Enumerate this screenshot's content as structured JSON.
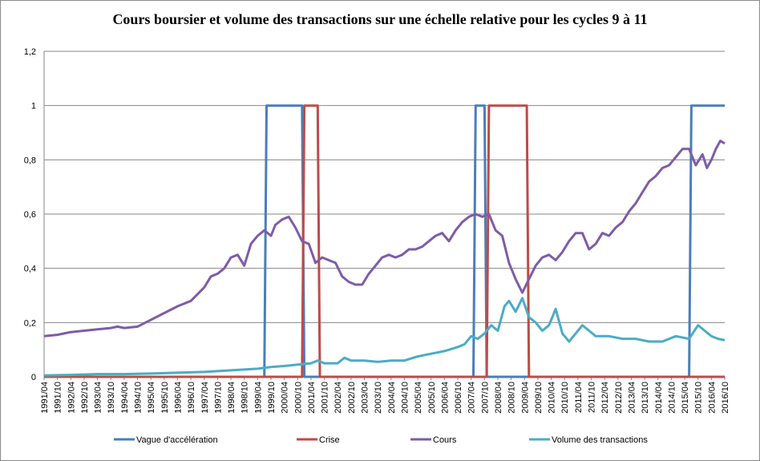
{
  "chart_data": {
    "type": "line",
    "title": "Cours boursier et volume des transactions sur une échelle relative pour les cycles 9 à 11",
    "xlabel": "",
    "ylabel": "",
    "ylim": [
      0,
      1.2
    ],
    "yticks": [
      "0",
      "0,2",
      "0,4",
      "0,6",
      "0,8",
      "1",
      "1,2"
    ],
    "grid": true,
    "legend_position": "bottom",
    "x_start": "1991/04",
    "x_end": "2016/10",
    "x_step_months": 6,
    "series": [
      {
        "name": "Vague d'accélération",
        "color": "#4a7ebb",
        "style": "step",
        "points": [
          [
            "1991/04",
            0
          ],
          [
            "1999/07",
            0
          ],
          [
            "1999/08",
            1
          ],
          [
            "2000/12",
            1
          ],
          [
            "2001/01",
            0
          ],
          [
            "2007/05",
            0
          ],
          [
            "2007/06",
            1
          ],
          [
            "2007/10",
            1
          ],
          [
            "2007/11",
            0
          ],
          [
            "2015/06",
            0
          ],
          [
            "2015/07",
            1
          ],
          [
            "2016/10",
            1
          ]
        ]
      },
      {
        "name": "Crise",
        "color": "#be4b48",
        "style": "step",
        "points": [
          [
            "1991/04",
            0
          ],
          [
            "2000/12",
            0
          ],
          [
            "2001/01",
            1
          ],
          [
            "2001/07",
            1
          ],
          [
            "2001/08",
            0
          ],
          [
            "2007/11",
            0
          ],
          [
            "2007/12",
            1
          ],
          [
            "2009/05",
            1
          ],
          [
            "2009/06",
            0
          ],
          [
            "2016/10",
            0
          ]
        ]
      },
      {
        "name": "Cours",
        "color": "#7e5ca6",
        "style": "line",
        "points": [
          [
            "1991/04",
            0.15
          ],
          [
            "1991/10",
            0.155
          ],
          [
            "1992/01",
            0.16
          ],
          [
            "1992/04",
            0.165
          ],
          [
            "1992/10",
            0.17
          ],
          [
            "1993/04",
            0.175
          ],
          [
            "1993/10",
            0.18
          ],
          [
            "1994/01",
            0.185
          ],
          [
            "1994/04",
            0.18
          ],
          [
            "1994/10",
            0.185
          ],
          [
            "1995/04",
            0.21
          ],
          [
            "1995/10",
            0.235
          ],
          [
            "1996/04",
            0.26
          ],
          [
            "1996/10",
            0.28
          ],
          [
            "1997/04",
            0.33
          ],
          [
            "1997/07",
            0.37
          ],
          [
            "1997/10",
            0.38
          ],
          [
            "1998/01",
            0.4
          ],
          [
            "1998/04",
            0.44
          ],
          [
            "1998/07",
            0.45
          ],
          [
            "1998/10",
            0.41
          ],
          [
            "1999/01",
            0.49
          ],
          [
            "1999/04",
            0.52
          ],
          [
            "1999/07",
            0.54
          ],
          [
            "1999/10",
            0.52
          ],
          [
            "1999/12",
            0.56
          ],
          [
            "2000/03",
            0.58
          ],
          [
            "2000/06",
            0.59
          ],
          [
            "2000/09",
            0.55
          ],
          [
            "2000/12",
            0.5
          ],
          [
            "2001/03",
            0.49
          ],
          [
            "2001/06",
            0.42
          ],
          [
            "2001/09",
            0.44
          ],
          [
            "2001/12",
            0.43
          ],
          [
            "2002/03",
            0.42
          ],
          [
            "2002/06",
            0.37
          ],
          [
            "2002/09",
            0.35
          ],
          [
            "2002/12",
            0.34
          ],
          [
            "2003/03",
            0.34
          ],
          [
            "2003/06",
            0.38
          ],
          [
            "2003/09",
            0.41
          ],
          [
            "2003/12",
            0.44
          ],
          [
            "2004/03",
            0.45
          ],
          [
            "2004/06",
            0.44
          ],
          [
            "2004/09",
            0.45
          ],
          [
            "2004/12",
            0.47
          ],
          [
            "2005/03",
            0.47
          ],
          [
            "2005/06",
            0.48
          ],
          [
            "2005/09",
            0.5
          ],
          [
            "2005/12",
            0.52
          ],
          [
            "2006/03",
            0.53
          ],
          [
            "2006/06",
            0.5
          ],
          [
            "2006/09",
            0.54
          ],
          [
            "2006/12",
            0.57
          ],
          [
            "2007/03",
            0.59
          ],
          [
            "2007/06",
            0.6
          ],
          [
            "2007/09",
            0.59
          ],
          [
            "2007/12",
            0.6
          ],
          [
            "2008/03",
            0.54
          ],
          [
            "2008/06",
            0.52
          ],
          [
            "2008/09",
            0.42
          ],
          [
            "2008/12",
            0.36
          ],
          [
            "2009/03",
            0.31
          ],
          [
            "2009/06",
            0.36
          ],
          [
            "2009/09",
            0.41
          ],
          [
            "2009/12",
            0.44
          ],
          [
            "2010/03",
            0.45
          ],
          [
            "2010/06",
            0.43
          ],
          [
            "2010/09",
            0.46
          ],
          [
            "2010/12",
            0.5
          ],
          [
            "2011/03",
            0.53
          ],
          [
            "2011/06",
            0.53
          ],
          [
            "2011/09",
            0.47
          ],
          [
            "2011/12",
            0.49
          ],
          [
            "2012/03",
            0.53
          ],
          [
            "2012/06",
            0.52
          ],
          [
            "2012/09",
            0.55
          ],
          [
            "2012/12",
            0.57
          ],
          [
            "2013/03",
            0.61
          ],
          [
            "2013/06",
            0.64
          ],
          [
            "2013/09",
            0.68
          ],
          [
            "2013/12",
            0.72
          ],
          [
            "2014/03",
            0.74
          ],
          [
            "2014/06",
            0.77
          ],
          [
            "2014/09",
            0.78
          ],
          [
            "2014/12",
            0.81
          ],
          [
            "2015/03",
            0.84
          ],
          [
            "2015/06",
            0.84
          ],
          [
            "2015/09",
            0.78
          ],
          [
            "2015/12",
            0.82
          ],
          [
            "2016/02",
            0.77
          ],
          [
            "2016/04",
            0.8
          ],
          [
            "2016/06",
            0.84
          ],
          [
            "2016/08",
            0.87
          ],
          [
            "2016/10",
            0.86
          ]
        ]
      },
      {
        "name": "Volume des transactions",
        "color": "#4bacc6",
        "style": "line",
        "points": [
          [
            "1991/04",
            0.005
          ],
          [
            "1992/04",
            0.007
          ],
          [
            "1993/04",
            0.01
          ],
          [
            "1994/04",
            0.01
          ],
          [
            "1995/04",
            0.012
          ],
          [
            "1996/04",
            0.015
          ],
          [
            "1997/04",
            0.018
          ],
          [
            "1998/04",
            0.024
          ],
          [
            "1999/04",
            0.03
          ],
          [
            "1999/10",
            0.036
          ],
          [
            "2000/04",
            0.04
          ],
          [
            "2000/10",
            0.045
          ],
          [
            "2001/04",
            0.05
          ],
          [
            "2001/07",
            0.06
          ],
          [
            "2001/10",
            0.05
          ],
          [
            "2002/04",
            0.05
          ],
          [
            "2002/07",
            0.07
          ],
          [
            "2002/10",
            0.06
          ],
          [
            "2003/04",
            0.06
          ],
          [
            "2003/10",
            0.055
          ],
          [
            "2004/04",
            0.06
          ],
          [
            "2004/10",
            0.06
          ],
          [
            "2005/04",
            0.075
          ],
          [
            "2005/10",
            0.085
          ],
          [
            "2006/04",
            0.095
          ],
          [
            "2006/10",
            0.11
          ],
          [
            "2007/01",
            0.12
          ],
          [
            "2007/04",
            0.15
          ],
          [
            "2007/07",
            0.14
          ],
          [
            "2007/10",
            0.16
          ],
          [
            "2008/01",
            0.19
          ],
          [
            "2008/04",
            0.17
          ],
          [
            "2008/07",
            0.26
          ],
          [
            "2008/09",
            0.28
          ],
          [
            "2008/12",
            0.24
          ],
          [
            "2009/03",
            0.29
          ],
          [
            "2009/06",
            0.22
          ],
          [
            "2009/09",
            0.2
          ],
          [
            "2009/12",
            0.17
          ],
          [
            "2010/03",
            0.19
          ],
          [
            "2010/06",
            0.25
          ],
          [
            "2010/09",
            0.16
          ],
          [
            "2010/12",
            0.13
          ],
          [
            "2011/03",
            0.16
          ],
          [
            "2011/06",
            0.19
          ],
          [
            "2011/09",
            0.17
          ],
          [
            "2011/12",
            0.15
          ],
          [
            "2012/06",
            0.15
          ],
          [
            "2012/12",
            0.14
          ],
          [
            "2013/06",
            0.14
          ],
          [
            "2013/12",
            0.13
          ],
          [
            "2014/06",
            0.13
          ],
          [
            "2014/12",
            0.15
          ],
          [
            "2015/06",
            0.14
          ],
          [
            "2015/10",
            0.19
          ],
          [
            "2016/01",
            0.17
          ],
          [
            "2016/04",
            0.15
          ],
          [
            "2016/07",
            0.14
          ],
          [
            "2016/10",
            0.135
          ]
        ]
      }
    ]
  }
}
